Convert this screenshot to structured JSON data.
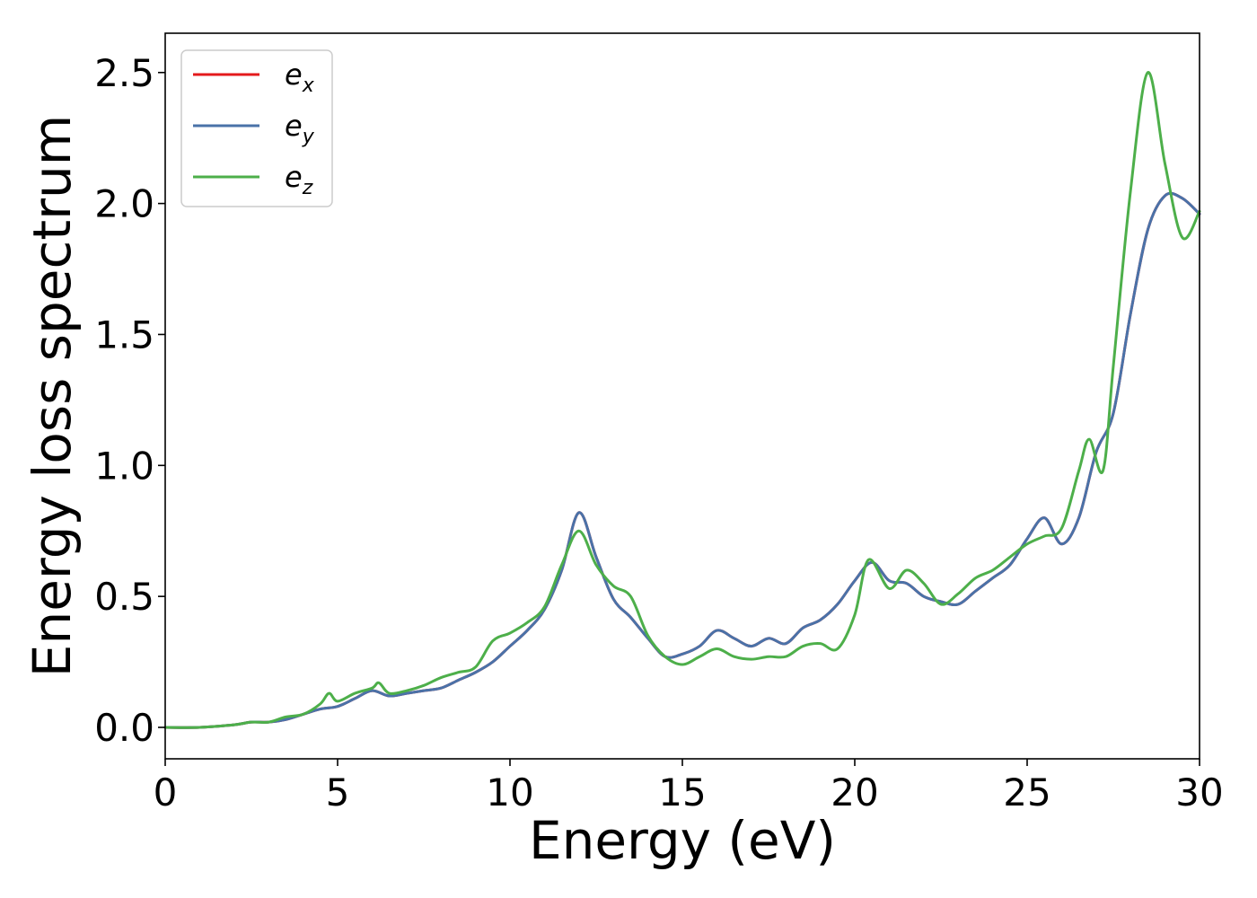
{
  "chart_data": {
    "type": "line",
    "xlabel": "Energy (eV)",
    "ylabel": "Energy loss spectrum",
    "xlim": [
      0,
      30
    ],
    "ylim": [
      -0.12,
      2.65
    ],
    "xticks": [
      0,
      5,
      10,
      15,
      20,
      25,
      30
    ],
    "xtick_labels": [
      "0",
      "5",
      "10",
      "15",
      "20",
      "25",
      "30"
    ],
    "yticks": [
      0.0,
      0.5,
      1.0,
      1.5,
      2.0,
      2.5
    ],
    "ytick_labels": [
      "0.0",
      "0.5",
      "1.0",
      "1.5",
      "2.0",
      "2.5"
    ],
    "grid": false,
    "legend_position": "top-left",
    "series": [
      {
        "name": "e",
        "subscript": "x",
        "color": "#e41a1c",
        "x": [
          0,
          1,
          2,
          2.5,
          3,
          3.5,
          4,
          4.5,
          5,
          5.5,
          6,
          6.5,
          7,
          7.5,
          8,
          8.5,
          9,
          9.5,
          10,
          10.5,
          11,
          11.5,
          12,
          12.5,
          13,
          13.5,
          14,
          14.5,
          15,
          15.5,
          16,
          16.5,
          17,
          17.5,
          18,
          18.5,
          19,
          19.5,
          20,
          20.5,
          21,
          21.5,
          22,
          22.5,
          23,
          23.5,
          24,
          24.5,
          25,
          25.5,
          26,
          26.5,
          27,
          27.5,
          28,
          28.5,
          29,
          29.5,
          30
        ],
        "y": [
          0,
          0,
          0.01,
          0.02,
          0.02,
          0.03,
          0.05,
          0.07,
          0.08,
          0.11,
          0.14,
          0.12,
          0.13,
          0.14,
          0.15,
          0.18,
          0.21,
          0.25,
          0.31,
          0.37,
          0.45,
          0.6,
          0.82,
          0.65,
          0.49,
          0.42,
          0.34,
          0.27,
          0.28,
          0.31,
          0.37,
          0.34,
          0.31,
          0.34,
          0.32,
          0.38,
          0.41,
          0.47,
          0.56,
          0.63,
          0.56,
          0.55,
          0.5,
          0.48,
          0.47,
          0.52,
          0.57,
          0.62,
          0.72,
          0.8,
          0.7,
          0.8,
          1.05,
          1.2,
          1.58,
          1.9,
          2.03,
          2.02,
          1.96
        ]
      },
      {
        "name": "e",
        "subscript": "y",
        "color": "#4a72a8",
        "x": [
          0,
          1,
          2,
          2.5,
          3,
          3.5,
          4,
          4.5,
          5,
          5.5,
          6,
          6.5,
          7,
          7.5,
          8,
          8.5,
          9,
          9.5,
          10,
          10.5,
          11,
          11.5,
          12,
          12.5,
          13,
          13.5,
          14,
          14.5,
          15,
          15.5,
          16,
          16.5,
          17,
          17.5,
          18,
          18.5,
          19,
          19.5,
          20,
          20.5,
          21,
          21.5,
          22,
          22.5,
          23,
          23.5,
          24,
          24.5,
          25,
          25.5,
          26,
          26.5,
          27,
          27.5,
          28,
          28.5,
          29,
          29.5,
          30
        ],
        "y": [
          0,
          0,
          0.01,
          0.02,
          0.02,
          0.03,
          0.05,
          0.07,
          0.08,
          0.11,
          0.14,
          0.12,
          0.13,
          0.14,
          0.15,
          0.18,
          0.21,
          0.25,
          0.31,
          0.37,
          0.45,
          0.6,
          0.82,
          0.65,
          0.49,
          0.42,
          0.34,
          0.27,
          0.28,
          0.31,
          0.37,
          0.34,
          0.31,
          0.34,
          0.32,
          0.38,
          0.41,
          0.47,
          0.56,
          0.63,
          0.56,
          0.55,
          0.5,
          0.48,
          0.47,
          0.52,
          0.57,
          0.62,
          0.72,
          0.8,
          0.7,
          0.8,
          1.05,
          1.2,
          1.58,
          1.9,
          2.03,
          2.02,
          1.96
        ]
      },
      {
        "name": "e",
        "subscript": "z",
        "color": "#4daf4a",
        "x": [
          0,
          1,
          2,
          2.5,
          3,
          3.5,
          4,
          4.5,
          4.75,
          5,
          5.5,
          6,
          6.2,
          6.5,
          7,
          7.5,
          8,
          8.5,
          9,
          9.5,
          10,
          10.5,
          11,
          11.5,
          12,
          12.5,
          13,
          13.5,
          14,
          14.5,
          15,
          15.5,
          16,
          16.5,
          17,
          17.5,
          18,
          18.5,
          19,
          19.5,
          20,
          20.4,
          21,
          21.5,
          22,
          22.5,
          23,
          23.5,
          24,
          24.5,
          25,
          25.5,
          26,
          26.5,
          26.8,
          27.2,
          27.5,
          28,
          28.5,
          29,
          29.5,
          30
        ],
        "y": [
          0,
          0,
          0.01,
          0.02,
          0.02,
          0.04,
          0.05,
          0.09,
          0.13,
          0.1,
          0.13,
          0.15,
          0.17,
          0.13,
          0.14,
          0.16,
          0.19,
          0.21,
          0.23,
          0.33,
          0.36,
          0.4,
          0.46,
          0.62,
          0.75,
          0.62,
          0.54,
          0.5,
          0.35,
          0.27,
          0.24,
          0.27,
          0.3,
          0.27,
          0.26,
          0.27,
          0.27,
          0.31,
          0.32,
          0.3,
          0.43,
          0.64,
          0.53,
          0.6,
          0.55,
          0.47,
          0.51,
          0.57,
          0.6,
          0.65,
          0.7,
          0.73,
          0.76,
          0.98,
          1.1,
          0.98,
          1.38,
          2.05,
          2.5,
          2.15,
          1.87,
          1.97
        ]
      }
    ]
  }
}
